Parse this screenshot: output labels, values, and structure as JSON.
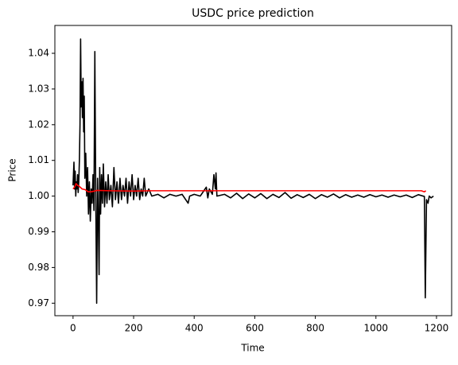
{
  "chart_data": {
    "type": "line",
    "title": "USDC price prediction",
    "xlabel": "Time",
    "ylabel": "Price",
    "xlim": [
      -60,
      1250
    ],
    "ylim": [
      0.9665,
      1.0478
    ],
    "xticks": [
      0,
      200,
      400,
      600,
      800,
      1000,
      1200
    ],
    "yticks": [
      0.97,
      0.98,
      0.99,
      {
        "value": 1,
        "label": "1.00"
      },
      1.01,
      1.02,
      1.03,
      1.04
    ],
    "grid": false,
    "series": [
      {
        "color": "#000000",
        "x": [
          0,
          3,
          5,
          7,
          9,
          11,
          13,
          15,
          17,
          19,
          21,
          23,
          25,
          27,
          29,
          31,
          33,
          35,
          37,
          39,
          42,
          45,
          48,
          51,
          54,
          57,
          60,
          63,
          66,
          69,
          72,
          75,
          78,
          81,
          84,
          86,
          88,
          91,
          94,
          97,
          100,
          104,
          108,
          112,
          116,
          120,
          125,
          130,
          135,
          140,
          145,
          150,
          155,
          160,
          165,
          170,
          175,
          180,
          185,
          190,
          195,
          200,
          205,
          210,
          215,
          220,
          225,
          230,
          235,
          240,
          250,
          260,
          280,
          300,
          320,
          340,
          360,
          380,
          385,
          400,
          420,
          440,
          445,
          450,
          460,
          465,
          470,
          472,
          475,
          500,
          520,
          540,
          560,
          580,
          600,
          620,
          640,
          660,
          680,
          700,
          720,
          740,
          760,
          780,
          800,
          820,
          840,
          860,
          880,
          900,
          920,
          940,
          960,
          980,
          1000,
          1020,
          1040,
          1060,
          1080,
          1100,
          1120,
          1140,
          1160,
          1163,
          1167,
          1172,
          1176,
          1182,
          1190
        ],
        "values": [
          1.003,
          1.0095,
          1.002,
          1.007,
          1.0,
          1.004,
          1.002,
          1.006,
          1.001,
          1.004,
          1.01,
          1.02,
          1.044,
          1.025,
          1.032,
          1.022,
          1.033,
          1.018,
          1.028,
          1.005,
          1.012,
          1.0,
          1.008,
          0.995,
          1.004,
          0.993,
          1.002,
          0.998,
          1.006,
          0.996,
          1.0405,
          1.0,
          0.97,
          1.005,
          0.991,
          0.978,
          1.008,
          0.995,
          1.006,
          0.998,
          1.009,
          0.997,
          1.004,
          0.998,
          1.006,
          0.999,
          1.003,
          0.997,
          1.008,
          0.999,
          1.004,
          0.998,
          1.005,
          0.999,
          1.003,
          1.0,
          1.005,
          0.998,
          1.004,
          1.0,
          1.006,
          0.999,
          1.003,
          1.0,
          1.005,
          0.999,
          1.002,
          1.0,
          1.005,
          1.0,
          1.002,
          1.0,
          1.0005,
          0.9995,
          1.0005,
          1.0,
          1.0005,
          0.998,
          1.0,
          1.0005,
          1.0,
          1.0025,
          0.9995,
          1.002,
          1.0005,
          1.006,
          1.002,
          1.0065,
          1.0,
          1.0005,
          0.9995,
          1.0008,
          0.9993,
          1.0006,
          0.9995,
          1.0007,
          0.9993,
          1.0005,
          0.9996,
          1.001,
          0.9994,
          1.0004,
          0.9996,
          1.0005,
          0.9993,
          1.0004,
          0.9997,
          1.0006,
          0.9995,
          1.0004,
          0.9997,
          1.0003,
          0.9997,
          1.0004,
          0.9998,
          1.0003,
          0.9997,
          1.0003,
          0.9998,
          1.0003,
          0.9996,
          1.0004,
          0.9999,
          0.9715,
          0.999,
          0.998,
          1.0,
          0.9995,
          1.0
        ]
      },
      {
        "color": "#ff0000",
        "x": [
          0,
          5,
          10,
          15,
          20,
          30,
          40,
          50,
          60,
          80,
          120,
          200,
          250,
          300,
          500,
          800,
          1000,
          1150,
          1160,
          1165
        ],
        "values": [
          1.002,
          1.0025,
          1.0035,
          1.003,
          1.0028,
          1.002,
          1.0018,
          1.0012,
          1.0012,
          1.0016,
          1.0015,
          1.0014,
          1.0015,
          1.0015,
          1.0015,
          1.0015,
          1.0015,
          1.0015,
          1.0012,
          1.0015
        ]
      }
    ]
  }
}
